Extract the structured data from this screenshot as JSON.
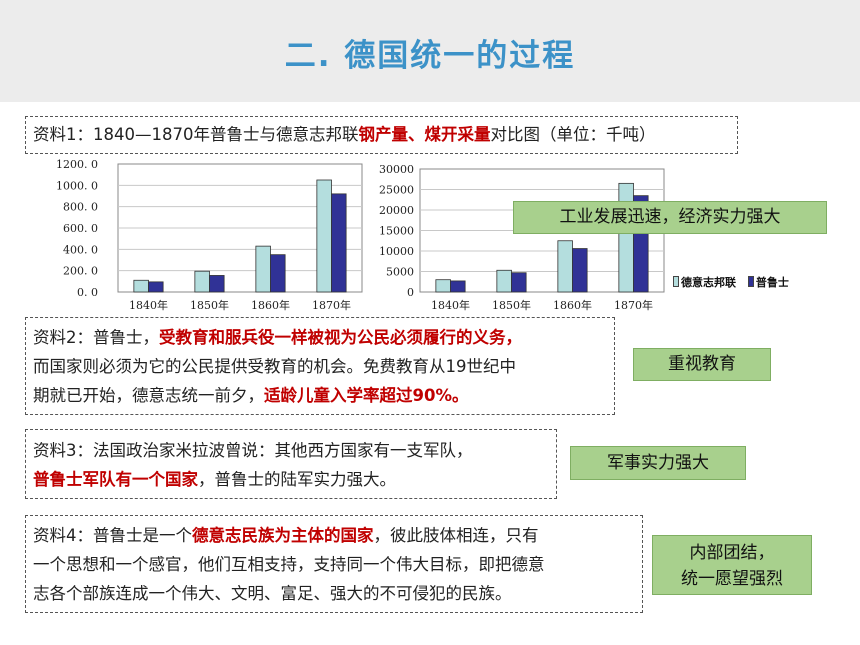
{
  "title": "二. 德国统一的过程",
  "m1": {
    "a": "资料1：1840—1870年普鲁士与德意志邦联",
    "b": "钢产量、煤开采量",
    "c": "对比图（单位：千吨）"
  },
  "chart_data": [
    {
      "type": "bar",
      "categories": [
        "1840年",
        "1850年",
        "1860年",
        "1870年"
      ],
      "ylim": [
        0,
        1200
      ],
      "yticks": [
        "1200. 0",
        "1000. 0",
        "800. 0",
        "600. 0",
        "400. 0",
        "200. 0",
        "0. 0"
      ],
      "series": [
        {
          "name": "德意志邦联",
          "values": [
            110,
            195,
            430,
            1050
          ]
        },
        {
          "name": "普鲁士",
          "values": [
            95,
            155,
            350,
            920
          ]
        }
      ]
    },
    {
      "type": "bar",
      "categories": [
        "1840年",
        "1850年",
        "1860年",
        "1870年"
      ],
      "ylim": [
        0,
        30000
      ],
      "yticks": [
        "30000",
        "25000",
        "20000",
        "15000",
        "10000",
        "5000",
        "0"
      ],
      "series": [
        {
          "name": "德意志邦联",
          "values": [
            3000,
            5300,
            12500,
            26500
          ]
        },
        {
          "name": "普鲁士",
          "values": [
            2700,
            4700,
            10600,
            23500
          ]
        }
      ]
    }
  ],
  "legend": {
    "s1": "德意志邦联",
    "s2": "普鲁士"
  },
  "colors": {
    "s1": "#b4dede",
    "s2": "#303296",
    "tag": "#a8d08d",
    "title": "#3c92c8",
    "red": "#c00000"
  },
  "m2": {
    "l1a": "资料2：普鲁士，",
    "l1b": "受教育和服兵役一样被视为公民必须履行的义务，",
    "l2": "而国家则必须为它的公民提供受教育的机会。免费教育从19世纪中",
    "l3a": "期就已开始，德意志统一前夕，",
    "l3b": "适龄儿童入学率超过90%。"
  },
  "m3": {
    "l1": "资料3：法国政治家米拉波曾说：其他西方国家有一支军队，",
    "l2a": "普鲁士军队有一个国家",
    "l2b": "，普鲁士的陆军实力强大。"
  },
  "m4": {
    "l1a": "资料4：普鲁士是一个",
    "l1b": "德意志民族为主体的国家",
    "l1c": "，彼此肢体相连，只有",
    "l2": "一个思想和一个感官，他们互相支持，支持同一个伟大目标，即把德意",
    "l3": "志各个部族连成一个伟大、文明、富足、强大的不可侵犯的民族。"
  },
  "tags": {
    "t1": "工业发展迅速，经济实力强大",
    "t2": "重视教育",
    "t3": "军事实力强大",
    "t4a": "内部团结，",
    "t4b": "统一愿望强烈"
  }
}
